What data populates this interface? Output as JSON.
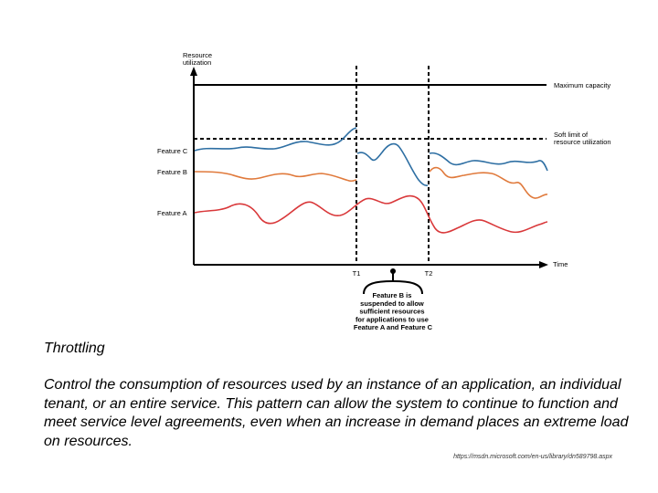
{
  "diagram": {
    "y_axis_label": [
      "Resource",
      "utilization"
    ],
    "x_axis_label": "Time",
    "max_capacity_label": "Maximum capacity",
    "soft_limit_label": [
      "Soft limit of",
      "resource utilization"
    ],
    "feature_c_label": "Feature C",
    "feature_b_label": "Feature B",
    "feature_a_label": "Feature A",
    "t1_label": "T1",
    "t2_label": "T2",
    "callout_lines": [
      "Feature B is",
      "suspended to allow",
      "sufficient resources",
      "for applications to use",
      "Feature A and Feature C"
    ],
    "colors": {
      "feature_c": "#2e6fa3",
      "feature_b": "#e07a3c",
      "feature_a": "#d9383a",
      "axis": "#000000"
    }
  },
  "slide": {
    "title": "Throttling",
    "body": "Control the consumption of resources used by an instance of an application, an individual tenant, or an entire service. This pattern can allow the system to continue to function and meet service level agreements, even when an increase in demand places an extreme load on resources.",
    "source": "https://msdn.microsoft.com/en-us/library/dn589798.aspx"
  }
}
